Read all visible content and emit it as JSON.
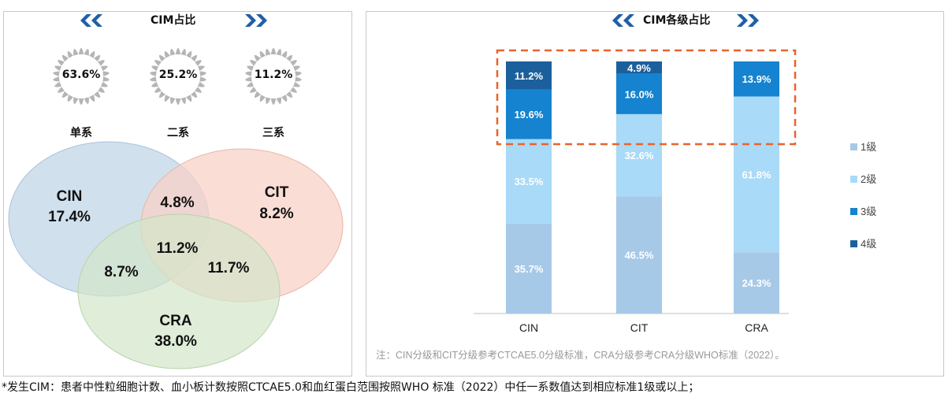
{
  "left_panel": {
    "title": "CIM占比",
    "bursts": [
      {
        "value": "63.6%",
        "label": "单系"
      },
      {
        "value": "25.2%",
        "label": "二系"
      },
      {
        "value": "11.2%",
        "label": "三系"
      }
    ],
    "venn": {
      "circles": [
        {
          "name": "CIN",
          "value": "17.4%",
          "color": "#c9daea"
        },
        {
          "name": "CIT",
          "value": "8.2%",
          "color": "#f8d2c7"
        },
        {
          "name": "CRA",
          "value": "38.0%",
          "color": "#d3e6c9"
        }
      ],
      "overlaps": {
        "cin_cit": "4.8%",
        "cin_cra": "8.7%",
        "cit_cra": "11.7%",
        "all": "11.2%"
      }
    }
  },
  "right_panel": {
    "title": "CIM各级占比",
    "note": "注：CIN分级和CIT分级参考CTCAE5.0分级标准，CRA分级参考CRA分级WHO标准（2022）。"
  },
  "chart_data": {
    "type": "bar",
    "stacked": true,
    "categories": [
      "CIN",
      "CIT",
      "CRA"
    ],
    "series": [
      {
        "name": "1级",
        "color": "#a6c9e8",
        "values": [
          35.7,
          46.5,
          24.3
        ]
      },
      {
        "name": "2级",
        "color": "#a9daf7",
        "values": [
          33.5,
          32.6,
          61.8
        ]
      },
      {
        "name": "3级",
        "color": "#1583cf",
        "values": [
          19.6,
          16.0,
          13.9
        ]
      },
      {
        "name": "4级",
        "color": "#1c5f9d",
        "values": [
          11.2,
          4.9,
          0
        ]
      }
    ],
    "data_labels": [
      [
        "35.7%",
        "46.5%",
        "24.3%"
      ],
      [
        "33.5%",
        "32.6%",
        "61.8%"
      ],
      [
        "19.6%",
        "16.0%",
        "13.9%"
      ],
      [
        "11.2%",
        "4.9%",
        ""
      ]
    ],
    "ylim": [
      0,
      100
    ],
    "legend": "right",
    "highlight": "dashed box around grades 3 and 4"
  },
  "footnote": "*发生CIM：患者中性粒细胞计数、血小板计数按照CTCAE5.0和血红蛋白范围按照WHO 标准（2022）中任一系数值达到相应标准1级或以上；"
}
